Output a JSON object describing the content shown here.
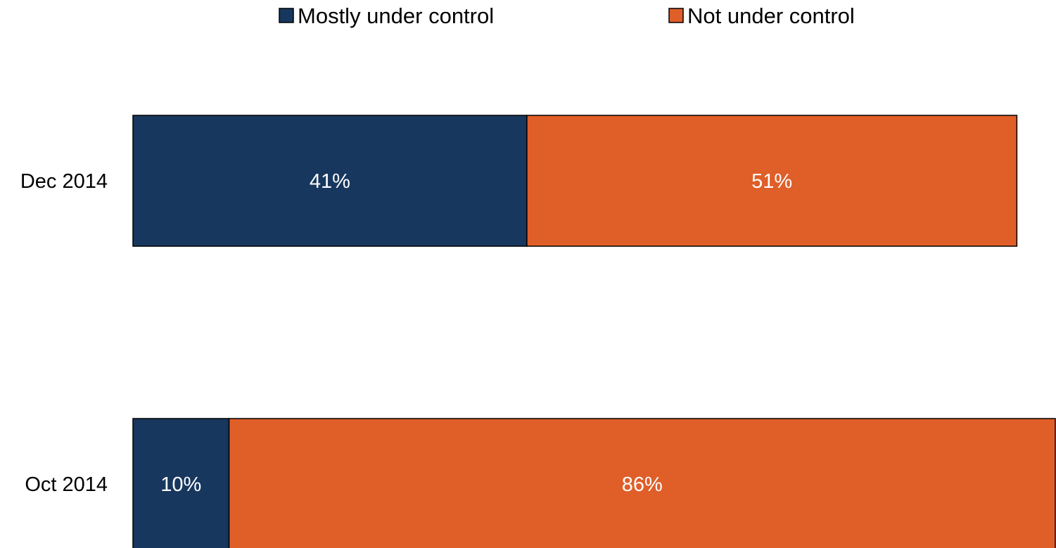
{
  "chart_data": {
    "type": "bar",
    "orientation": "horizontal",
    "stacked": true,
    "title": "",
    "xlabel": "",
    "ylabel": "",
    "categories": [
      "Dec 2014",
      "Oct 2014"
    ],
    "series": [
      {
        "name": "Mostly under control",
        "color": "#17375e",
        "values": [
          41,
          10
        ],
        "labels": [
          "41%",
          "10%"
        ]
      },
      {
        "name": "Not under control",
        "color": "#e05e28",
        "values": [
          51,
          86
        ],
        "labels": [
          "51%",
          "86%"
        ]
      }
    ],
    "xlim": [
      0,
      96
    ],
    "unit": "%",
    "grid": false,
    "legend_position": "top"
  }
}
